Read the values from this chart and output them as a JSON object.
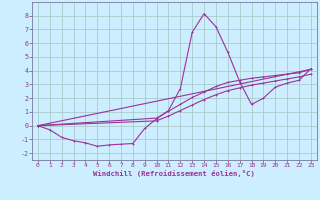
{
  "xlabel": "Windchill (Refroidissement éolien,°C)",
  "background_color": "#cceeff",
  "grid_color": "#aacccc",
  "line_color": "#993399",
  "xlim": [
    -0.5,
    23.5
  ],
  "ylim": [
    -2.5,
    9.0
  ],
  "yticks": [
    -2,
    -1,
    0,
    1,
    2,
    3,
    4,
    5,
    6,
    7,
    8
  ],
  "xticks": [
    0,
    1,
    2,
    3,
    4,
    5,
    6,
    7,
    8,
    9,
    10,
    11,
    12,
    13,
    14,
    15,
    16,
    17,
    18,
    19,
    20,
    21,
    22,
    23
  ],
  "series1_x": [
    0,
    1,
    2,
    3,
    4,
    5,
    6,
    7,
    8,
    9,
    10,
    11,
    12,
    13,
    14,
    15,
    16,
    17,
    18,
    19,
    20,
    21,
    22,
    23
  ],
  "series1_y": [
    0.0,
    -0.3,
    -0.85,
    -1.1,
    -1.25,
    -1.5,
    -1.4,
    -1.35,
    -1.3,
    -0.2,
    0.5,
    1.1,
    2.7,
    6.8,
    8.15,
    7.2,
    5.35,
    3.2,
    1.55,
    2.0,
    2.8,
    3.1,
    3.3,
    4.15
  ],
  "series2_x": [
    0,
    23
  ],
  "series2_y": [
    0.0,
    4.1
  ],
  "series3_x": [
    0,
    10,
    11,
    12,
    13,
    14,
    15,
    16,
    17,
    18,
    19,
    20,
    21,
    22,
    23
  ],
  "series3_y": [
    0.0,
    0.55,
    1.05,
    1.55,
    2.05,
    2.45,
    2.85,
    3.15,
    3.3,
    3.45,
    3.55,
    3.65,
    3.75,
    3.85,
    4.1
  ],
  "series4_x": [
    0,
    10,
    11,
    12,
    13,
    14,
    15,
    16,
    17,
    18,
    19,
    20,
    21,
    22,
    23
  ],
  "series4_y": [
    0.0,
    0.35,
    0.7,
    1.1,
    1.5,
    1.9,
    2.25,
    2.55,
    2.75,
    2.95,
    3.1,
    3.25,
    3.4,
    3.55,
    3.75
  ]
}
